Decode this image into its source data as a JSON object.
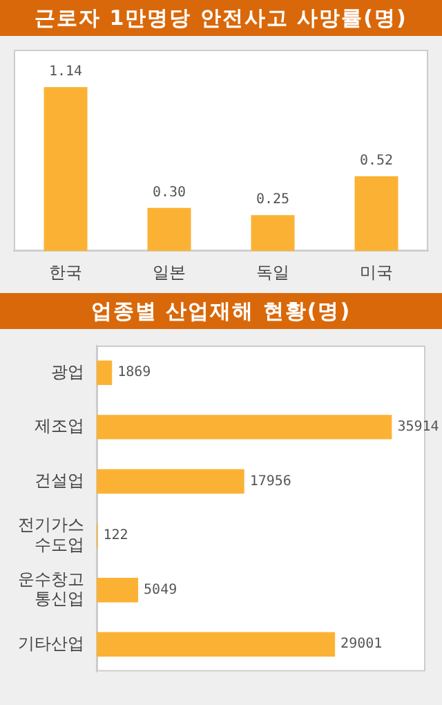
{
  "chart_data": [
    {
      "type": "bar",
      "title": "근로자 1만명당 안전사고 사망률(명)",
      "categories": [
        "한국",
        "일본",
        "독일",
        "미국"
      ],
      "values": [
        1.14,
        0.3,
        0.25,
        0.52
      ],
      "value_labels": [
        "1.14",
        "0.30",
        "0.25",
        "0.52"
      ],
      "color": "#fbb234",
      "tick_labels": "x",
      "legend": false
    },
    {
      "type": "bar",
      "orientation": "horizontal",
      "title": "업종별 산업재해 현황(명)",
      "categories": [
        "광업",
        "제조업",
        "건설업",
        "전기가스\n수도업",
        "운수창고\n통신업",
        "기타산업"
      ],
      "values": [
        1869,
        35914,
        17956,
        122,
        5049,
        29001
      ],
      "color": "#fbb234",
      "data_labels": true,
      "tick_labels": "y",
      "legend": false
    }
  ]
}
